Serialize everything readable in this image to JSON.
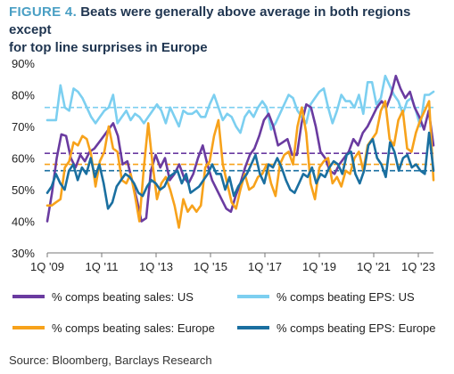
{
  "figure_label": "FIGURE 4.",
  "title_line1": "Beats were generally above average in both regions except",
  "title_line2": "for top line surprises in Europe",
  "source": "Source: Bloomberg, Barclays Research",
  "colors": {
    "us_sales": "#6a3ba0",
    "us_eps": "#7ccff0",
    "eu_sales": "#f7a21b",
    "eu_eps": "#1a6fa0",
    "axis": "#777777"
  },
  "chart_data": {
    "type": "line",
    "x_tick_labels": [
      "1Q '09",
      "1Q '11",
      "1Q '13",
      "1Q '15",
      "1Q '17",
      "1Q '19",
      "1Q '21",
      "1Q '23"
    ],
    "y_tick_labels": [
      "90%",
      "80%",
      "70%",
      "60%",
      "50%",
      "40%",
      "30%"
    ],
    "ylim": [
      30,
      90
    ],
    "x_start_quarter": "1Q 2009",
    "x_end_quarter": "3Q 2023",
    "legend_position": "bottom",
    "series": [
      {
        "name": "% comps beating sales:  US",
        "color_key": "us_sales",
        "average": 61.5,
        "values": [
          40,
          49,
          60,
          67.5,
          67,
          60,
          57,
          61,
          59,
          62,
          63,
          65,
          67,
          69,
          71,
          67,
          58,
          59,
          53,
          47,
          40,
          41,
          56,
          61,
          57,
          60,
          53,
          55,
          58,
          54,
          52,
          55,
          60,
          64,
          58,
          53,
          50,
          47,
          44,
          43,
          48,
          52,
          57,
          61,
          63,
          67,
          72,
          74,
          70,
          64,
          65,
          66,
          61,
          61,
          71,
          77,
          76,
          70,
          62,
          60,
          56,
          55,
          58,
          60,
          62,
          66,
          64,
          68,
          70,
          73,
          76,
          78,
          76,
          80,
          86,
          82,
          79,
          81,
          76,
          73,
          69,
          75,
          64
        ]
      },
      {
        "name": "% comps beating EPS:  US",
        "color_key": "us_eps",
        "average": 76,
        "values": [
          72,
          72,
          72,
          83,
          76,
          75,
          82,
          81,
          79,
          76,
          73,
          71,
          73,
          75,
          76,
          80,
          71,
          73,
          75,
          72,
          74,
          73,
          71,
          73,
          75,
          77,
          75,
          71,
          76,
          73,
          70,
          75,
          74,
          74,
          75,
          73,
          73,
          77,
          80,
          76,
          72,
          74,
          73,
          70,
          68,
          73,
          75,
          73,
          76,
          78,
          76,
          69,
          71,
          74,
          77,
          80,
          79,
          75,
          73,
          71,
          77,
          79,
          81,
          82,
          76,
          71,
          75,
          80,
          78,
          78,
          76,
          80,
          74,
          84,
          84,
          77,
          79,
          86,
          83,
          80,
          78,
          74,
          78,
          79,
          75,
          70,
          80,
          80,
          81
        ]
      },
      {
        "name": "% comps beating sales:  Europe",
        "color_key": "eu_sales",
        "average": 58,
        "values": [
          45,
          45,
          46,
          47,
          57,
          59,
          65,
          64,
          67,
          66,
          61,
          51,
          59,
          62,
          70,
          63,
          62,
          53,
          52,
          55,
          48,
          40,
          57,
          71,
          58,
          47,
          52,
          54,
          50,
          45,
          38,
          47,
          43,
          45,
          43,
          45,
          57,
          59,
          67,
          72,
          58,
          52,
          46,
          44,
          50,
          55,
          50,
          51,
          54,
          55,
          58,
          52,
          48,
          58,
          61,
          62,
          58,
          70,
          76,
          68,
          52,
          47,
          57,
          59,
          60,
          52,
          54,
          51,
          56,
          55,
          60,
          62,
          56,
          64,
          66,
          68,
          75,
          78,
          66,
          64,
          72,
          75,
          63,
          62,
          68,
          72,
          75,
          78,
          53
        ]
      },
      {
        "name": "% comps beating EPS:  Europe",
        "color_key": "eu_eps",
        "average": 56,
        "values": [
          49,
          51,
          55,
          52,
          50,
          56,
          58,
          53,
          57,
          55,
          60,
          54,
          58,
          52,
          44,
          46,
          51,
          53,
          55,
          54,
          52,
          49,
          48,
          51,
          53,
          52,
          50,
          51,
          54,
          55,
          56,
          52,
          55,
          49,
          50,
          51,
          53,
          55,
          58,
          55,
          55,
          50,
          54,
          48,
          51,
          53,
          55,
          58,
          61,
          55,
          52,
          58,
          57,
          60,
          57,
          53,
          50,
          49,
          52,
          55,
          54,
          57,
          52,
          55,
          54,
          57,
          59,
          58,
          55,
          61,
          62,
          55,
          52,
          56,
          64,
          66,
          60,
          58,
          54,
          65,
          62,
          56,
          60,
          61,
          57,
          58,
          56,
          55,
          68,
          56
        ]
      }
    ]
  }
}
